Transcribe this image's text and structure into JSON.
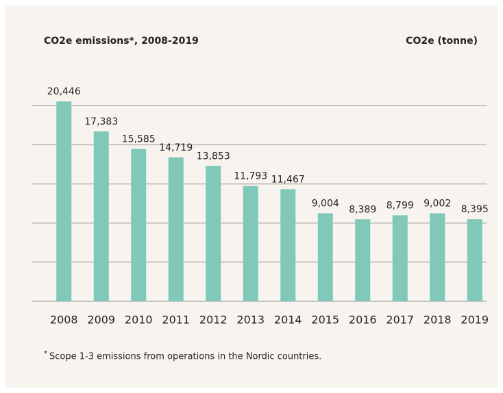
{
  "chart_data": {
    "type": "bar",
    "title": "CO2e emissions*, 2008-2019",
    "y_label": "CO2e (tonne)",
    "categories": [
      "2008",
      "2009",
      "2010",
      "2011",
      "2012",
      "2013",
      "2014",
      "2015",
      "2016",
      "2017",
      "2018",
      "2019"
    ],
    "values": [
      20446,
      17383,
      15585,
      14719,
      13853,
      11793,
      11467,
      9004,
      8389,
      8799,
      9002,
      8395
    ],
    "value_labels": [
      "20,446",
      "17,383",
      "15,585",
      "14,719",
      "13,853",
      "11,793",
      "11,467",
      "9,004",
      "8,389",
      "8,799",
      "9,002",
      "8,395"
    ],
    "color": "#7fc8ba",
    "ylim": [
      0,
      22000
    ],
    "yticks": [
      0,
      4000,
      8000,
      12000,
      16000,
      20000
    ],
    "grid": true,
    "footnote_marker": "*",
    "footnote": "Scope 1-3 emissions from operations in the Nordic countries."
  }
}
